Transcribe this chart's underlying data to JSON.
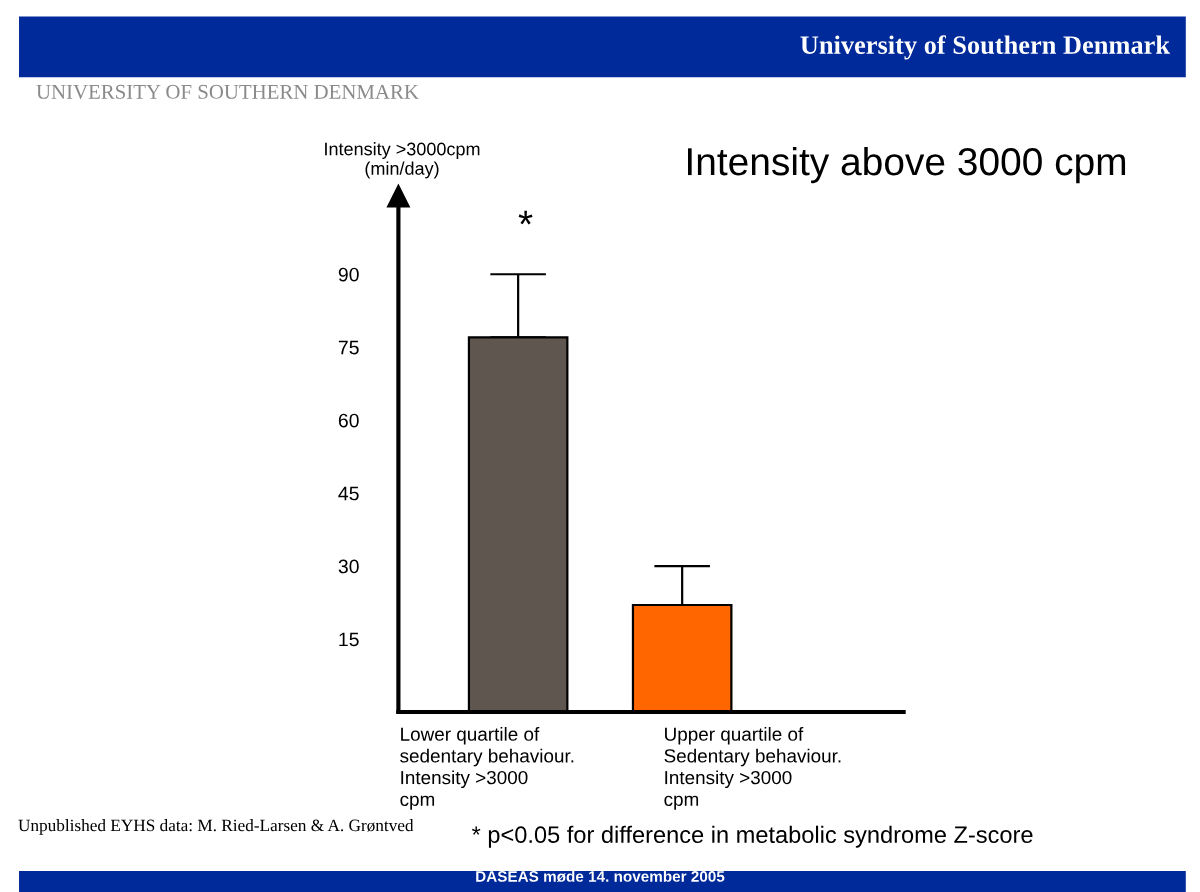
{
  "chart_data": {
    "type": "bar",
    "title": "Intensity above 3000 cpm",
    "ylabel": "Intensity >3000cpm\n(min/day)",
    "categories": [
      "Lower quartile of\nsedentary behaviour.\nIntensity >3000\ncpm",
      "Upper quartile of\nSedentary behaviour.\nIntensity >3000\ncpm"
    ],
    "values": [
      77,
      22
    ],
    "colors": [
      "#5f574f",
      "#ff6600"
    ],
    "errors": [
      [
        77,
        90
      ],
      [
        22,
        30
      ]
    ],
    "ylim": [
      0,
      106
    ],
    "yticks": [
      15,
      30,
      45,
      60,
      75,
      90
    ],
    "grid": false,
    "annotations": [
      "*",
      "University of Southern Denmark",
      "UNIVERSITY OF SOUTHERN DENMARK",
      "Unpublished EYHS data: M. Ried-Larsen & A. Grøntved",
      "* p<0.05 for difference in metabolic syndrome Z-score",
      "DASEAS møde 14. november 2005"
    ]
  }
}
